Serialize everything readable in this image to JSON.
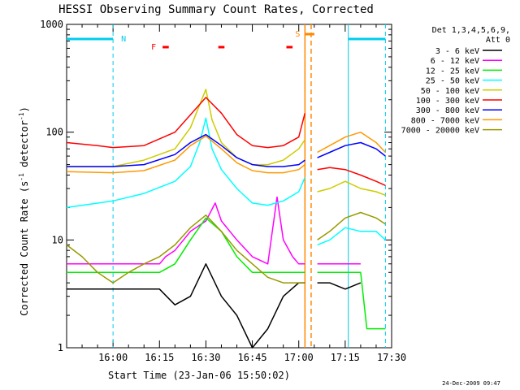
{
  "chart_data": {
    "type": "line",
    "title": "HESSI Observing Summary Count Rates, Corrected",
    "xlabel": "Start Time (23-Jan-06 15:50:02)",
    "ylabel": "Corrected Count Rate (s⁻¹ detector⁻¹)",
    "ylabel_main": "Corrected Count Rate (s",
    "ylabel_sup1": "-1",
    "ylabel_mid": " detector",
    "ylabel_sup2": "-1",
    "ylabel_end": ")",
    "yscale": "log",
    "ylim": [
      1,
      1000
    ],
    "xlim_minutes": [
      -5,
      100
    ],
    "x_ticks": [
      {
        "m": 10,
        "label": "16:00"
      },
      {
        "m": 25,
        "label": "16:15"
      },
      {
        "m": 40,
        "label": "16:30"
      },
      {
        "m": 55,
        "label": "16:45"
      },
      {
        "m": 70,
        "label": "17:00"
      },
      {
        "m": 85,
        "label": "17:15"
      },
      {
        "m": 100,
        "label": "17:30"
      }
    ],
    "y_ticks": [
      {
        "v": 1,
        "label": "1"
      },
      {
        "v": 10,
        "label": "10"
      },
      {
        "v": 100,
        "label": "100"
      },
      {
        "v": 1000,
        "label": "1000"
      }
    ],
    "legend_header_1": "Det 1,3,4,5,6,9,",
    "legend_header_2": "Att 0",
    "legend_placement": "right",
    "timestamp": "24-Dec-2009 09:47",
    "flag_labels": {
      "night": "N",
      "flare": "F",
      "saa": "S"
    },
    "night_intervals": [
      [
        -5,
        10
      ],
      [
        86,
        98
      ]
    ],
    "flare_segments": [
      [
        26,
        28
      ],
      [
        44,
        46
      ],
      [
        66,
        68
      ]
    ],
    "saa_interval": [
      72,
      74
    ],
    "series": [
      {
        "name": "3 - 6 keV",
        "color": "#000000",
        "x": [
          -5,
          25,
          30,
          35,
          40,
          45,
          50,
          55,
          60,
          65,
          70,
          72
        ],
        "y": [
          3.5,
          3.5,
          2.5,
          3,
          6,
          3,
          2,
          1,
          1.5,
          3,
          4,
          4
        ]
      },
      {
        "name": "6 - 12 keV",
        "color": "#ff00ff",
        "x": [
          -5,
          20,
          25,
          27,
          30,
          35,
          40,
          43,
          45,
          50,
          55,
          60,
          63,
          65,
          68,
          70,
          72
        ],
        "y": [
          6,
          6,
          6,
          7,
          8,
          12,
          15,
          22,
          15,
          10,
          7,
          6,
          25,
          10,
          7,
          6,
          6
        ]
      },
      {
        "name": "12 - 25 keV",
        "color": "#00ee00",
        "x": [
          -5,
          25,
          30,
          35,
          40,
          45,
          50,
          55,
          60,
          65,
          70,
          72
        ],
        "y": [
          5,
          5,
          6,
          10,
          16,
          12,
          7,
          5,
          5,
          5,
          5,
          5
        ]
      },
      {
        "name": "25 - 50 keV",
        "color": "#00ffff",
        "x": [
          -5,
          10,
          20,
          30,
          35,
          38,
          40,
          42,
          45,
          50,
          55,
          60,
          65,
          70,
          72
        ],
        "y": [
          20,
          23,
          27,
          35,
          48,
          80,
          135,
          70,
          45,
          30,
          22,
          21,
          23,
          28,
          38
        ]
      },
      {
        "name": "50 - 100 keV",
        "color": "#cccc00",
        "x": [
          -5,
          10,
          20,
          30,
          35,
          38,
          40,
          42,
          45,
          50,
          55,
          60,
          65,
          70,
          72
        ],
        "y": [
          48,
          48,
          55,
          70,
          110,
          180,
          250,
          130,
          80,
          58,
          50,
          50,
          55,
          70,
          85
        ]
      },
      {
        "name": "100 - 300 keV",
        "color": "#ff0000",
        "x": [
          -5,
          5,
          10,
          20,
          30,
          35,
          40,
          45,
          50,
          55,
          60,
          65,
          70,
          72
        ],
        "y": [
          80,
          75,
          72,
          75,
          100,
          145,
          210,
          150,
          95,
          75,
          72,
          75,
          90,
          150
        ]
      },
      {
        "name": "300 - 800 keV",
        "color": "#0000ff",
        "x": [
          -5,
          10,
          20,
          30,
          35,
          40,
          45,
          50,
          55,
          60,
          65,
          70,
          72
        ],
        "y": [
          48,
          48,
          50,
          62,
          80,
          95,
          75,
          58,
          50,
          48,
          48,
          50,
          55
        ]
      },
      {
        "name": "800 - 7000 keV",
        "color": "#ff9900",
        "x": [
          -5,
          10,
          20,
          30,
          35,
          40,
          45,
          50,
          55,
          60,
          65,
          70,
          72
        ],
        "y": [
          43,
          42,
          44,
          55,
          75,
          92,
          70,
          52,
          44,
          42,
          42,
          45,
          50
        ]
      },
      {
        "name": "7000 - 20000 keV",
        "color": "#999900",
        "x": [
          -5,
          0,
          5,
          10,
          15,
          20,
          25,
          30,
          35,
          40,
          45,
          50,
          55,
          60,
          65,
          70,
          72
        ],
        "y": [
          9,
          7,
          5,
          4,
          5,
          6,
          7,
          9,
          13,
          17,
          12,
          8,
          6,
          4.5,
          4,
          4,
          4
        ]
      }
    ],
    "post_saa_series": [
      {
        "name": "7000 - 20000 keV",
        "x": [
          76,
          80,
          85,
          90,
          95,
          98
        ],
        "y": [
          10,
          12,
          16,
          18,
          16,
          14
        ],
        "color": "#999900"
      },
      {
        "name": "800 - 7000 keV",
        "x": [
          76,
          80,
          85,
          90,
          95,
          98
        ],
        "y": [
          65,
          75,
          90,
          100,
          80,
          65
        ],
        "color": "#ff9900"
      },
      {
        "name": "300 - 800 keV",
        "x": [
          76,
          80,
          85,
          90,
          95,
          98
        ],
        "y": [
          58,
          65,
          75,
          80,
          70,
          60
        ],
        "color": "#0000ff"
      },
      {
        "name": "100 - 300 keV",
        "x": [
          76,
          80,
          85,
          90,
          95,
          98
        ],
        "y": [
          45,
          47,
          45,
          40,
          35,
          32
        ],
        "color": "#ff0000"
      },
      {
        "name": "50 - 100 keV",
        "x": [
          76,
          80,
          85,
          90,
          95,
          98
        ],
        "y": [
          28,
          30,
          35,
          30,
          28,
          26
        ],
        "color": "#cccc00"
      },
      {
        "name": "25 - 50 keV",
        "x": [
          76,
          80,
          85,
          90,
          95,
          98
        ],
        "y": [
          9,
          10,
          13,
          12,
          12,
          10
        ],
        "color": "#00ffff"
      },
      {
        "name": "6 - 12 keV",
        "x": [
          76,
          80,
          85,
          90
        ],
        "y": [
          6,
          6,
          6,
          6
        ],
        "color": "#ff00ff"
      },
      {
        "name": "3 - 6 keV",
        "x": [
          76,
          80,
          85,
          90
        ],
        "y": [
          4,
          4,
          3.5,
          4
        ],
        "color": "#000000"
      },
      {
        "name": "12 - 25 keV",
        "x": [
          76,
          80,
          85,
          90,
          92,
          95,
          98
        ],
        "y": [
          5,
          5,
          5,
          5,
          1.5,
          1.5,
          1.5
        ],
        "color": "#00ee00"
      }
    ]
  }
}
